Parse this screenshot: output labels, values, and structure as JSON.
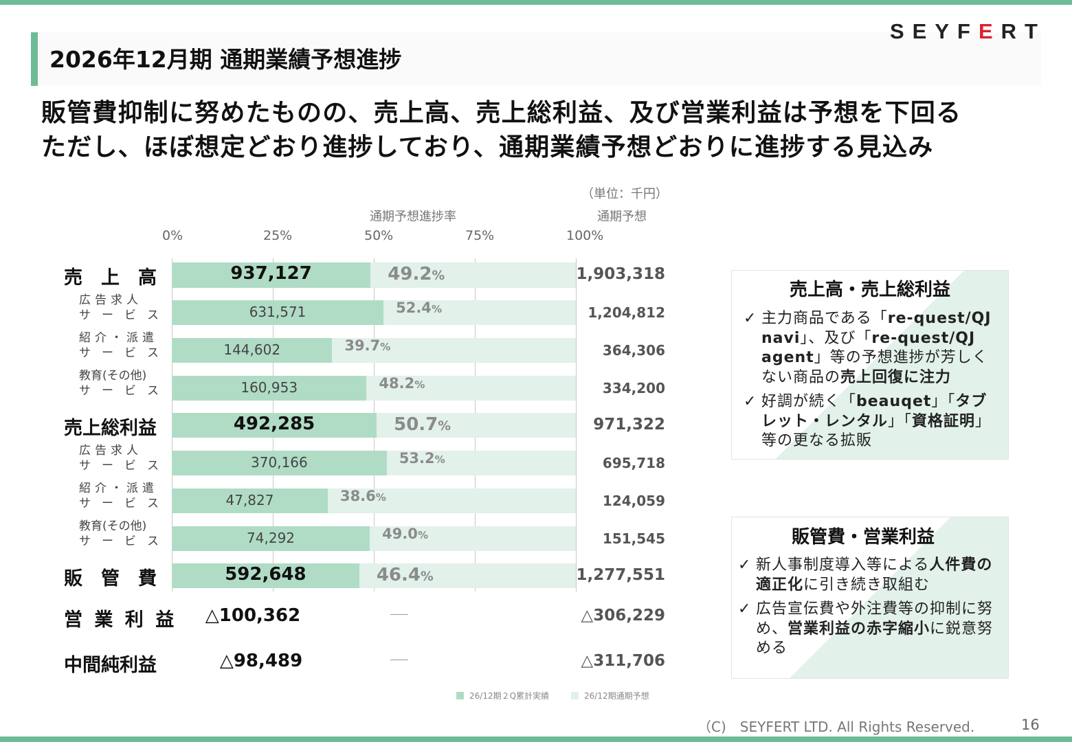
{
  "header": {
    "title": "2026年12月期 通期業績予想進捗",
    "logo_before": "SEYF",
    "logo_accent": "E",
    "logo_after": "RT"
  },
  "headline": {
    "line1": "販管費抑制に努めたものの、売上高、売上総利益、及び営業利益は予想を下回る",
    "line2": "ただし、ほぼ想定どおり進捗しており、通期業績予想どおりに進捗する見込み"
  },
  "chart_data": {
    "type": "bar",
    "orientation": "horizontal",
    "unit_note": "（単位：千円）",
    "axis_title": "通期予想進捗率",
    "forecast_header": "通期予想",
    "ticks": [
      "0%",
      "25%",
      "50%",
      "75%",
      "100%"
    ],
    "xlim": [
      0,
      100
    ],
    "rows": [
      {
        "label": "売　上　高",
        "level": "major",
        "actual": "937,127",
        "pct": 49.2,
        "pct_label": "49.2",
        "forecast": "1,903,318"
      },
      {
        "label_line1": "広告求人",
        "label_line2": "サービス",
        "level": "sub",
        "actual": "631,571",
        "pct": 52.4,
        "pct_label": "52.4",
        "forecast": "1,204,812"
      },
      {
        "label_line1": "紹介・派遣",
        "label_line2": "サービス",
        "level": "sub",
        "actual": "144,602",
        "pct": 39.7,
        "pct_label": "39.7",
        "forecast": "364,306"
      },
      {
        "label_line1": "教育(その他)",
        "label_line2": "サービス",
        "level": "sub",
        "actual": "160,953",
        "pct": 48.2,
        "pct_label": "48.2",
        "forecast": "334,200"
      },
      {
        "label": "売上総利益",
        "level": "major",
        "actual": "492,285",
        "pct": 50.7,
        "pct_label": "50.7",
        "forecast": "971,322"
      },
      {
        "label_line1": "広告求人",
        "label_line2": "サービス",
        "level": "sub",
        "actual": "370,166",
        "pct": 53.2,
        "pct_label": "53.2",
        "forecast": "695,718"
      },
      {
        "label_line1": "紹介・派遣",
        "label_line2": "サービス",
        "level": "sub",
        "actual": "47,827",
        "pct": 38.6,
        "pct_label": "38.6",
        "forecast": "124,059"
      },
      {
        "label_line1": "教育(その他)",
        "label_line2": "サービス",
        "level": "sub",
        "actual": "74,292",
        "pct": 49.0,
        "pct_label": "49.0",
        "forecast": "151,545"
      },
      {
        "label": "販　管　費",
        "level": "major",
        "actual": "592,648",
        "pct": 46.4,
        "pct_label": "46.4",
        "forecast": "1,277,551"
      }
    ],
    "pct_unit": "%",
    "extra_rows": [
      {
        "label": "営 業 利 益",
        "actual": "△100,362",
        "forecast": "△306,229"
      },
      {
        "label": "中間純利益",
        "actual": "△98,489",
        "forecast": "△311,706"
      }
    ],
    "legend": [
      {
        "label": "26/12期２Q累計実績",
        "color": "#b0dcc6"
      },
      {
        "label": "26/12期通期予想",
        "color": "#e2f1ea"
      }
    ]
  },
  "card1": {
    "title": "売上高・売上総利益",
    "check": "✓",
    "item1": {
      "p1": "主力商品である「",
      "b1": "re-quest/QJ navi",
      "p2": "」、及び「",
      "b2": "re-quest/QJ agent",
      "p3": "」等の予想進捗が芳しくない商品の",
      "b3": "売上回復に注力"
    },
    "item2": {
      "p1": "好調が続く「",
      "b1": "beauqet",
      "p2": "」「",
      "b2": "タブレット・レンタル",
      "p3": "」「",
      "b3": "資格証明",
      "p4": "」等の更なる拡販"
    }
  },
  "card2": {
    "title": "販管費・営業利益",
    "check": "✓",
    "item1": {
      "p1": "新人事制度導入等による",
      "b1": "人件費の適正化",
      "p2": "に引き続き取組む"
    },
    "item2": {
      "p1": "広告宣伝費や外注費等の抑制に努め、",
      "b1": "営業利益の赤字縮小",
      "p2": "に鋭意努める"
    }
  },
  "footer": {
    "copyright": "（C)　SEYFERT LTD. All Rights Reserved.",
    "page": "16"
  }
}
